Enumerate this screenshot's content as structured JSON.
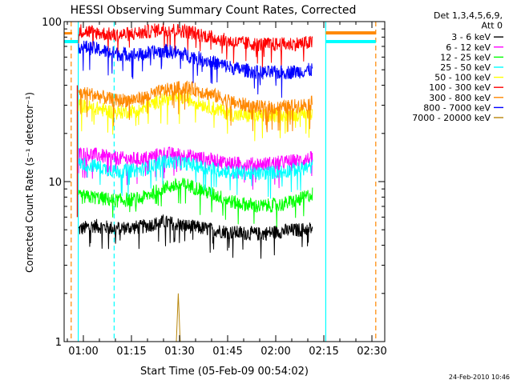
{
  "chart_data": {
    "type": "line",
    "title": "HESSI Observing Summary Count Rates, Corrected",
    "xlabel": "Start Time (05-Feb-09 00:54:02)",
    "ylabel": "Corrected Count Rate (s⁻¹ detector⁻¹)",
    "timestamp": "24-Feb-2010 10:46",
    "yscale": "log",
    "ylim": [
      1,
      100
    ],
    "xlim_minutes": [
      54,
      154
    ],
    "grid": false,
    "legend_position": "right",
    "legend_header": [
      "Det 1,3,4,5,6,9,",
      "Att 0"
    ],
    "x_ticks": [
      {
        "t": 60,
        "label": "01:00"
      },
      {
        "t": 75,
        "label": "01:15"
      },
      {
        "t": 90,
        "label": "01:30"
      },
      {
        "t": 105,
        "label": "01:45"
      },
      {
        "t": 120,
        "label": "02:00"
      },
      {
        "t": 135,
        "label": "02:15"
      },
      {
        "t": 150,
        "label": "02:30"
      }
    ],
    "y_ticks": [
      {
        "v": 1,
        "label": "1"
      },
      {
        "v": 10,
        "label": "10"
      },
      {
        "v": 100,
        "label": "100"
      }
    ],
    "series": [
      {
        "name": "3 - 6 keV",
        "color": "#000000",
        "x": [
          58.5,
          63,
          70,
          78,
          85,
          92,
          100,
          107,
          115,
          122,
          128,
          131.5
        ],
        "y": [
          5.0,
          5.3,
          5.1,
          5.2,
          5.6,
          5.3,
          5.0,
          4.8,
          4.7,
          4.9,
          5.0,
          5.1
        ]
      },
      {
        "name": "6 - 12 keV",
        "color": "#ff00ff",
        "x": [
          58.5,
          63,
          70,
          78,
          85,
          92,
          100,
          107,
          115,
          122,
          128,
          131.5
        ],
        "y": [
          15.0,
          14.8,
          14.0,
          13.8,
          15.0,
          14.6,
          13.6,
          13.0,
          12.8,
          13.2,
          13.6,
          14.0
        ]
      },
      {
        "name": "12 - 25 keV",
        "color": "#00ff00",
        "x": [
          58.5,
          63,
          70,
          78,
          85,
          92,
          100,
          107,
          115,
          122,
          128,
          131.5
        ],
        "y": [
          8.0,
          8.0,
          7.6,
          7.8,
          9.2,
          9.6,
          8.4,
          7.4,
          7.0,
          7.2,
          7.8,
          8.4
        ]
      },
      {
        "name": "25 - 50 keV",
        "color": "#00ffff",
        "x": [
          58.5,
          63,
          70,
          78,
          85,
          92,
          100,
          107,
          115,
          122,
          128,
          131.5
        ],
        "y": [
          13.0,
          12.6,
          11.6,
          11.8,
          13.4,
          13.0,
          12.0,
          11.4,
          11.2,
          11.6,
          12.0,
          12.4
        ]
      },
      {
        "name": "50 - 100 keV",
        "color": "#ffff00",
        "x": [
          58.5,
          63,
          70,
          78,
          85,
          92,
          100,
          107,
          115,
          122,
          128,
          131.5
        ],
        "y": [
          30.0,
          29.0,
          27.0,
          28.0,
          33.0,
          33.0,
          29.0,
          26.0,
          25.5,
          26.0,
          26.5,
          27.0
        ]
      },
      {
        "name": "100 - 300 keV",
        "color": "#ff0000",
        "x": [
          58.5,
          63,
          70,
          78,
          85,
          92,
          100,
          107,
          115,
          122,
          128,
          131.5
        ],
        "y": [
          88,
          86,
          82,
          85,
          90,
          87,
          80,
          74,
          72,
          72,
          73,
          74
        ]
      },
      {
        "name": "300 - 800 keV",
        "color": "#ff8800",
        "x": [
          58.5,
          63,
          70,
          78,
          85,
          92,
          100,
          107,
          115,
          122,
          128,
          131.5
        ],
        "y": [
          36.0,
          35.0,
          32.0,
          33.0,
          37.0,
          39.0,
          35.0,
          31.0,
          29.0,
          29.0,
          30.0,
          31.0
        ]
      },
      {
        "name": "800 - 7000 keV",
        "color": "#0000ff",
        "x": [
          58.5,
          63,
          70,
          78,
          85,
          92,
          100,
          107,
          115,
          122,
          128,
          131.5
        ],
        "y": [
          70,
          68,
          63,
          62,
          66,
          62,
          56,
          51,
          48,
          48,
          49,
          50
        ]
      },
      {
        "name": "7000 - 20000 keV",
        "color": "#b8860b",
        "x": [
          89,
          89.6,
          90.2
        ],
        "y": [
          1.0,
          2.0,
          1.0
        ]
      }
    ],
    "attenuator_lines": [
      {
        "t": 56.2,
        "color": "#ff8800",
        "style": "dashed"
      },
      {
        "t": 58.4,
        "color": "#00ffff",
        "style": "solid"
      },
      {
        "t": 69.6,
        "color": "#00ffff",
        "style": "dashed"
      },
      {
        "t": 135.6,
        "color": "#00ffff",
        "style": "solid"
      },
      {
        "t": 151.2,
        "color": "#ff8800",
        "style": "dashed"
      }
    ],
    "outside_flags": {
      "y": 75,
      "color": "#00ffff",
      "y2": 85,
      "color2": "#ff8800"
    }
  }
}
